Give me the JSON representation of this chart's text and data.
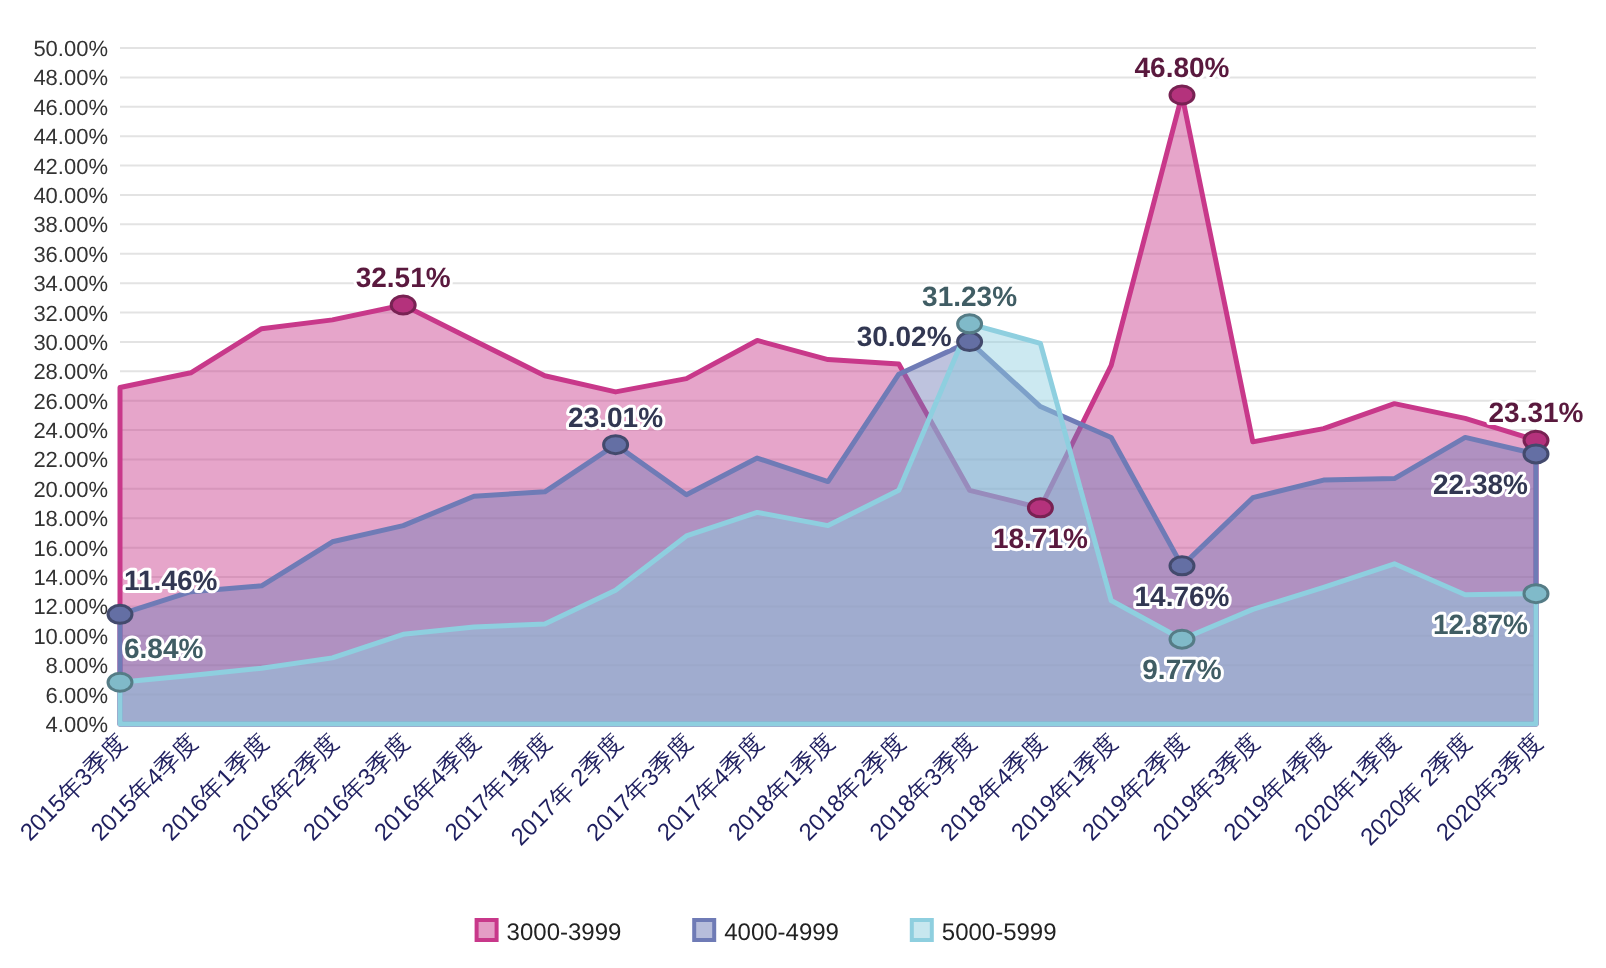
{
  "chart_data": {
    "type": "area",
    "categories": [
      "2015年3季度",
      "2015年4季度",
      "2016年1季度",
      "2016年2季度",
      "2016年3季度",
      "2016年4季度",
      "2017年1季度",
      "2017年 2季度",
      "2017年3季度",
      "2017年4季度",
      "2018年1季度",
      "2018年2季度",
      "2018年3季度",
      "2018年4季度",
      "2019年1季度",
      "2019年2季度",
      "2019年3季度",
      "2019年4季度",
      "2020年1季度",
      "2020年 2季度",
      "2020年3季度"
    ],
    "series": [
      {
        "name": "3000-3999",
        "color": "#c8388a",
        "values": [
          26.9,
          27.9,
          30.9,
          31.5,
          32.51,
          30.1,
          27.7,
          26.6,
          27.5,
          30.1,
          28.8,
          28.5,
          19.9,
          18.71,
          28.4,
          46.8,
          23.2,
          24.1,
          25.8,
          24.8,
          23.31
        ],
        "value_labels": [
          null,
          null,
          null,
          null,
          "32.51%",
          null,
          null,
          null,
          null,
          null,
          null,
          null,
          null,
          "18.71%",
          null,
          "46.80%",
          null,
          null,
          null,
          null,
          "23.31%"
        ]
      },
      {
        "name": "4000-4999",
        "color": "#6f7bb6",
        "values": [
          11.46,
          13.0,
          13.4,
          16.4,
          17.5,
          19.5,
          19.8,
          23.01,
          19.6,
          22.1,
          20.5,
          27.8,
          30.02,
          25.6,
          23.5,
          14.76,
          19.4,
          20.6,
          20.7,
          23.5,
          22.38
        ],
        "value_labels": [
          "11.46%",
          null,
          null,
          null,
          null,
          null,
          null,
          "23.01%",
          null,
          null,
          null,
          null,
          "30.02%",
          null,
          null,
          "14.76%",
          null,
          null,
          null,
          null,
          "22.38%"
        ]
      },
      {
        "name": "5000-5999",
        "color": "#8ecfdf",
        "values": [
          6.84,
          7.3,
          7.8,
          8.5,
          10.1,
          10.6,
          10.8,
          13.1,
          16.8,
          18.4,
          17.5,
          19.9,
          31.23,
          29.9,
          12.4,
          9.77,
          11.8,
          13.3,
          14.9,
          12.8,
          12.87
        ],
        "value_labels": [
          "6.84%",
          null,
          null,
          null,
          null,
          null,
          null,
          null,
          null,
          null,
          null,
          null,
          "31.23%",
          null,
          null,
          "9.77%",
          null,
          null,
          null,
          null,
          "12.87%"
        ]
      }
    ],
    "ylim": [
      4,
      50
    ],
    "yticks": [
      {
        "value": 4,
        "label": "4.00%"
      },
      {
        "value": 6,
        "label": "6.00%"
      },
      {
        "value": 8,
        "label": "8.00%"
      },
      {
        "value": 10,
        "label": "10.00%"
      },
      {
        "value": 12,
        "label": "12.00%"
      },
      {
        "value": 14,
        "label": "14.00%"
      },
      {
        "value": 16,
        "label": "16.00%"
      },
      {
        "value": 18,
        "label": "18.00%"
      },
      {
        "value": 20,
        "label": "20.00%"
      },
      {
        "value": 22,
        "label": "22.00%"
      },
      {
        "value": 24,
        "label": "24.00%"
      },
      {
        "value": 26,
        "label": "26.00%"
      },
      {
        "value": 28,
        "label": "28.00%"
      },
      {
        "value": 30,
        "label": "30.00%"
      },
      {
        "value": 32,
        "label": "32.00%"
      },
      {
        "value": 34,
        "label": "34.00%"
      },
      {
        "value": 36,
        "label": "36.00%"
      },
      {
        "value": 38,
        "label": "38.00%"
      },
      {
        "value": 40,
        "label": "40.00%"
      },
      {
        "value": 42,
        "label": "42.00%"
      },
      {
        "value": 44,
        "label": "44.00%"
      },
      {
        "value": 46,
        "label": "46.00%"
      },
      {
        "value": 48,
        "label": "48.00%"
      },
      {
        "value": 50,
        "label": "50.00%"
      }
    ],
    "grid": "y",
    "legend": "bottom"
  }
}
